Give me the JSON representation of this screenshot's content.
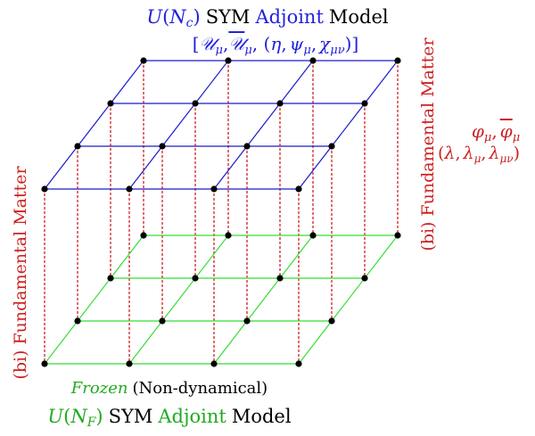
{
  "top_title": {
    "group_symbol": "U",
    "group_arg": "N",
    "group_sub": "c",
    "sym": "SYM",
    "adjoint": "Adjoint",
    "model": "Model"
  },
  "top_fields": {
    "open": "[",
    "U": "𝒰",
    "U_sub": "μ",
    "comma1": ",",
    "Ubar": "𝒰",
    "Ubar_sub": "μ",
    "comma2": ", (",
    "eta": "η",
    "comma3": ",",
    "psi": "ψ",
    "psi_sub": "μ",
    "comma4": ",",
    "chi": "χ",
    "chi_sub": "μν",
    "close": ")]"
  },
  "right_fields": {
    "phi": "φ",
    "phi_sub": "μ",
    "comma": ",",
    "phibar": "φ",
    "phibar_sub": "μ",
    "line2_open": "(",
    "lambda": "λ",
    "c1": ",",
    "lambda_mu": "λ",
    "lambda_mu_sub": "μ",
    "c2": ",",
    "lambda_munu": "λ",
    "lambda_munu_sub": "μν",
    "line2_close": ")"
  },
  "left_side": {
    "prefix": "(bi)",
    "text": "Fundamental Matter"
  },
  "right_side": {
    "prefix": "(bi)",
    "text": "Fundamental Matter"
  },
  "bottom_caption": {
    "frozen": "Frozen",
    "rest": "(Non-dynamical)"
  },
  "bottom_title": {
    "group_symbol": "U",
    "group_arg": "N",
    "group_sub": "F",
    "sym": "SYM",
    "adjoint": "Adjoint",
    "model": "Model"
  },
  "colors": {
    "blue_lattice": "#1a1acc",
    "green_lattice": "#33dd33",
    "red_links": "#cc1111",
    "text_black": "#000000",
    "label_red": "#cc2222",
    "label_blue": "#2222dd",
    "label_green": "#22aa22",
    "node": "#000000"
  },
  "lattice": {
    "rows": 4,
    "cols": 4
  }
}
